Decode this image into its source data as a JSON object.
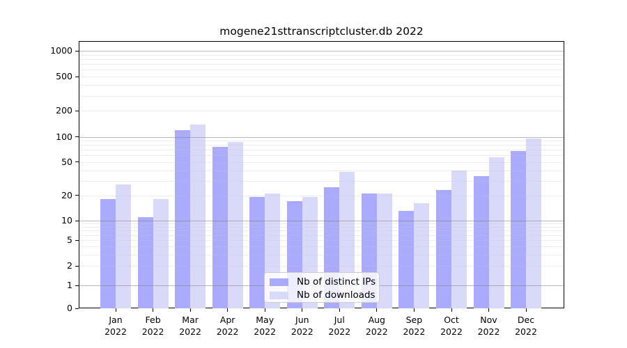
{
  "title": "mogene21sttranscriptcluster.db 2022",
  "chart_data": {
    "type": "bar",
    "title": "mogene21sttranscriptcluster.db 2022",
    "categories": [
      "Jan",
      "Feb",
      "Mar",
      "Apr",
      "May",
      "Jun",
      "Jul",
      "Aug",
      "Sep",
      "Oct",
      "Nov",
      "Dec"
    ],
    "year_label": "2022",
    "series": [
      {
        "name": "Nb of distinct IPs",
        "color": "#aaaaff",
        "values": [
          18,
          11,
          120,
          76,
          19,
          17,
          25,
          21,
          13,
          23,
          34,
          68
        ]
      },
      {
        "name": "Nb of downloads",
        "color": "#d9d9fa",
        "values": [
          27,
          18,
          140,
          87,
          21,
          19,
          38,
          21,
          16,
          40,
          57,
          95
        ]
      }
    ],
    "yticks": [
      0,
      1,
      2,
      5,
      10,
      20,
      50,
      100,
      200,
      500,
      1000
    ],
    "ylim": [
      0,
      1000
    ],
    "scale": "symlog",
    "grid": true,
    "gridline_major_values": [
      1,
      10,
      100,
      1000
    ],
    "legend_position": "lower center",
    "xlabel": "",
    "ylabel": ""
  }
}
